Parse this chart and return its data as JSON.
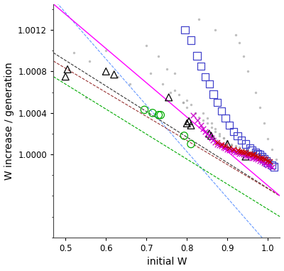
{
  "title": "",
  "xlabel": "initial W",
  "ylabel": "W increase / generation",
  "xlim": [
    0.47,
    1.03
  ],
  "ylim": [
    0.9992,
    1.00145
  ],
  "yticks": [
    1.0,
    1.0004,
    1.0008,
    1.0012
  ],
  "xticks": [
    0.5,
    0.6,
    0.7,
    0.8,
    0.9,
    1.0
  ],
  "gray_dots": {
    "x": [
      0.52,
      0.56,
      0.6,
      0.63,
      0.66,
      0.7,
      0.71,
      0.73,
      0.75,
      0.76,
      0.77,
      0.78,
      0.79,
      0.8,
      0.81,
      0.82,
      0.83,
      0.84,
      0.85,
      0.86,
      0.87,
      0.88,
      0.89,
      0.9,
      0.91,
      0.92,
      0.93,
      0.94,
      0.95,
      0.96,
      0.97,
      0.98,
      0.99,
      1.0,
      1.01,
      1.02,
      0.84,
      0.85,
      0.86,
      0.87,
      0.88,
      0.89,
      0.9,
      0.91,
      0.92,
      0.93,
      0.94,
      0.95,
      0.96,
      0.97,
      0.98,
      0.99,
      1.0,
      1.01,
      0.55,
      0.74,
      0.77,
      0.79,
      0.8,
      0.82,
      0.85,
      0.86,
      0.87,
      0.88,
      0.9,
      0.91,
      0.93,
      0.95,
      0.96,
      0.97,
      0.98,
      0.99,
      1.0,
      1.01,
      0.83,
      0.87,
      0.92,
      0.93,
      0.94,
      0.95,
      0.97,
      0.98,
      0.99,
      1.0,
      1.01,
      1.02
    ],
    "y": [
      1.00098,
      1.0009,
      1.001,
      1.00075,
      1.00068,
      1.00105,
      1.00078,
      1.00095,
      1.00082,
      1.0006,
      1.00078,
      1.00058,
      1.0005,
      1.00052,
      1.00048,
      1.0004,
      1.00036,
      1.00033,
      1.0003,
      1.00026,
      1.00022,
      1.00018,
      1.00016,
      1.00013,
      1.0001,
      1.00008,
      1.00007,
      1.00005,
      1.00004,
      1.00003,
      1.00002,
      1.00001,
      1.0,
      0.99997,
      0.99994,
      0.99991,
      1.0004,
      1.00035,
      1.0003,
      1.00025,
      1.0002,
      1.00016,
      1.00012,
      1.00009,
      1.00007,
      1.00005,
      1.00004,
      1.00002,
      1.00001,
      1.0,
      0.99998,
      0.99996,
      0.99994,
      0.99991,
      1.00055,
      1.00068,
      1.00062,
      1.0005,
      1.00045,
      1.0004,
      1.00022,
      1.00018,
      1.00015,
      1.00012,
      1.00008,
      1.00006,
      1.00004,
      1.00003,
      1.00002,
      1.0,
      0.99998,
      0.99996,
      0.99993,
      0.9999,
      1.0013,
      1.0012,
      1.00115,
      1.00108,
      1.00095,
      1.0008,
      1.0006,
      1.00045,
      1.0003,
      1.00015,
      1.00005,
      0.99995
    ],
    "color": "#aaaaaa",
    "size": 6
  },
  "black_triangles": {
    "x": [
      0.5,
      0.505,
      0.6,
      0.62,
      0.755,
      0.8,
      0.805,
      0.81,
      0.855,
      0.86,
      0.9,
      0.945
    ],
    "y": [
      1.00075,
      1.00082,
      1.0008,
      1.00077,
      1.00055,
      1.0003,
      1.00032,
      1.00028,
      1.0002,
      1.00018,
      1.0001,
      0.99998
    ],
    "color": "#000000",
    "size": 50
  },
  "blue_squares": {
    "x": [
      0.795,
      0.81,
      0.825,
      0.835,
      0.845,
      0.855,
      0.865,
      0.875,
      0.885,
      0.895,
      0.905,
      0.915,
      0.925,
      0.935,
      0.945,
      0.955,
      0.96,
      0.97,
      0.975,
      0.98,
      0.985,
      0.99,
      0.995,
      1.0,
      1.01,
      1.015
    ],
    "y": [
      1.0012,
      1.0011,
      1.00095,
      1.00085,
      1.00075,
      1.00068,
      1.00058,
      1.0005,
      1.00042,
      1.00035,
      1.00028,
      1.00022,
      1.00018,
      1.00014,
      1.0001,
      1.00006,
      1.00004,
      1.00002,
      1.00001,
      1.0,
      0.99998,
      0.99996,
      0.99994,
      0.99992,
      0.9999,
      0.99988
    ],
    "color": "#4444cc",
    "size": 55
  },
  "green_circles": {
    "x": [
      0.695,
      0.715,
      0.73,
      0.735,
      0.793,
      0.81
    ],
    "y": [
      1.00043,
      1.0004,
      1.00038,
      1.00038,
      1.00018,
      1.0001
    ],
    "color": "#00aa00",
    "size": 55
  },
  "magenta_crosses": {
    "x": [
      0.815,
      0.825,
      0.835,
      0.84,
      0.845,
      0.85,
      0.855,
      0.86,
      0.865,
      0.87,
      0.875,
      0.88,
      0.885,
      0.89,
      0.895,
      0.9,
      0.905,
      0.91,
      0.915,
      0.92,
      0.925,
      0.93,
      0.935,
      0.94,
      0.945,
      0.95,
      0.955,
      0.96,
      0.965,
      0.97,
      0.975,
      0.98,
      0.985,
      0.99,
      0.995,
      1.0,
      1.005,
      1.01
    ],
    "y": [
      1.00038,
      1.00033,
      1.00028,
      1.00025,
      1.00022,
      1.0002,
      1.00018,
      1.00016,
      1.00014,
      1.00012,
      1.0001,
      1.00009,
      1.00008,
      1.00007,
      1.00006,
      1.00005,
      1.00004,
      1.00004,
      1.00003,
      1.00002,
      1.00002,
      1.00001,
      1.00001,
      1.0,
      0.99999,
      0.99999,
      0.99998,
      0.99997,
      0.99997,
      0.99996,
      0.99995,
      0.99994,
      0.99993,
      0.99992,
      0.99991,
      0.9999,
      0.99989,
      0.99988
    ],
    "color": "#cc00cc",
    "size": 30
  },
  "red_crosses": {
    "x": [
      0.875,
      0.885,
      0.895,
      0.905,
      0.915,
      0.925,
      0.93,
      0.935,
      0.94,
      0.945,
      0.95,
      0.955,
      0.96,
      0.965,
      0.97,
      0.975,
      0.98,
      0.985,
      0.99,
      0.995,
      1.0,
      1.005
    ],
    "y": [
      1.00012,
      1.0001,
      1.00008,
      1.00006,
      1.00005,
      1.00004,
      1.00003,
      1.00003,
      1.00002,
      1.00002,
      1.00001,
      1.00001,
      1.0,
      1.0,
      0.99999,
      0.99998,
      0.99997,
      0.99997,
      0.99996,
      0.99995,
      0.99994,
      0.99993
    ],
    "color": "#cc0000",
    "size": 25
  },
  "line_magenta": {
    "x": [
      0.47,
      1.03
    ],
    "y": [
      1.00145,
      0.9996
    ],
    "color": "#ff00ff",
    "style": "-",
    "lw": 1.0
  },
  "line_blue": {
    "x": [
      0.47,
      1.03
    ],
    "y": [
      1.0015,
      0.999
    ],
    "color": "#6699ff",
    "style": "--",
    "lw": 0.8
  },
  "line_black": {
    "x": [
      0.47,
      1.03
    ],
    "y": [
      1.00098,
      0.9996
    ],
    "color": "#333333",
    "style": "--",
    "lw": 0.8
  },
  "line_darkred": {
    "x": [
      0.47,
      1.03
    ],
    "y": [
      1.0009,
      0.9996
    ],
    "color": "#993333",
    "style": "--",
    "lw": 0.8
  },
  "line_green": {
    "x": [
      0.47,
      1.03
    ],
    "y": [
      1.00075,
      0.9994
    ],
    "color": "#00aa00",
    "style": "--",
    "lw": 0.8
  }
}
